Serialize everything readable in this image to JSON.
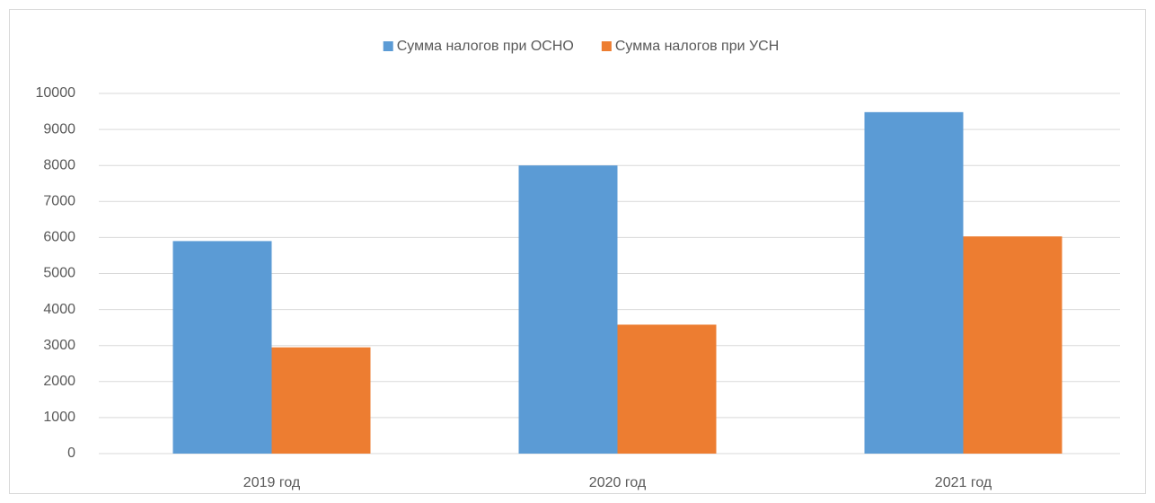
{
  "chart_data": {
    "type": "bar",
    "categories": [
      "2019 год",
      "2020 год",
      "2021 год"
    ],
    "series": [
      {
        "name": "Сумма налогов при ОСНО",
        "color": "#5b9bd5",
        "values": [
          5900,
          8000,
          9480
        ]
      },
      {
        "name": "Сумма налогов при УСН",
        "color": "#ed7d31",
        "values": [
          2950,
          3580,
          6030
        ]
      }
    ],
    "ylim": [
      0,
      10000
    ],
    "yticks": [
      0,
      1000,
      2000,
      3000,
      4000,
      5000,
      6000,
      7000,
      8000,
      9000,
      10000
    ],
    "grid": true,
    "legend": "top"
  }
}
